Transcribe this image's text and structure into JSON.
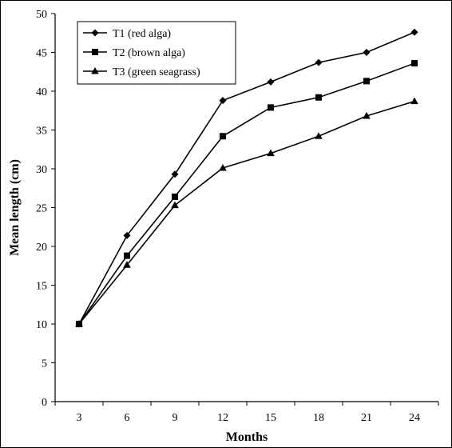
{
  "chart_data": {
    "type": "line",
    "x": [
      3,
      6,
      9,
      12,
      15,
      18,
      21,
      24
    ],
    "xlabel": "Months",
    "ylabel": "Mean length (cm)",
    "ylim": [
      0,
      50
    ],
    "yticks": [
      0,
      5,
      10,
      15,
      20,
      25,
      30,
      35,
      40,
      45,
      50
    ],
    "grid": false,
    "legend": "top-left",
    "series": [
      {
        "name": "T1 (red alga)",
        "marker": "diamond",
        "values": [
          10.0,
          21.4,
          29.3,
          38.8,
          41.2,
          43.7,
          45.0,
          47.6
        ]
      },
      {
        "name": "T2 (brown alga)",
        "marker": "square",
        "values": [
          10.0,
          18.8,
          26.4,
          34.2,
          37.9,
          39.2,
          41.3,
          43.6
        ]
      },
      {
        "name": "T3 (green seagrass)",
        "marker": "triangle",
        "values": [
          10.0,
          17.6,
          25.3,
          30.1,
          32.0,
          34.2,
          36.8,
          38.7
        ]
      }
    ]
  }
}
